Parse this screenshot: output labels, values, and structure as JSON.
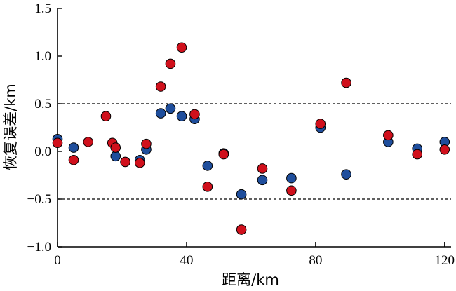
{
  "chart_data": {
    "type": "scatter",
    "xlabel": "距离/km",
    "ylabel": "恢复误差/km",
    "xlim": [
      0,
      122
    ],
    "ylim": [
      -1.0,
      1.5
    ],
    "x_ticks": [
      0,
      40,
      80,
      120
    ],
    "x_tick_labels": [
      "0",
      "40",
      "80",
      "120"
    ],
    "y_ticks": [
      -1.0,
      -0.5,
      0.0,
      0.5,
      1.0,
      1.5
    ],
    "y_tick_labels": [
      "−1.0",
      "−0.5",
      "0.0",
      "0.5",
      "1.0",
      "1.5"
    ],
    "reference_lines": [
      0.5,
      -0.5
    ],
    "grid": false,
    "legend": "none",
    "series": [
      {
        "color": "#1f4e9c",
        "x": [
          0,
          5,
          18,
          25.5,
          27.5,
          32,
          35,
          38.5,
          42.5,
          46.5,
          51.5,
          57,
          63.5,
          72.5,
          81.5,
          89.5,
          102.5,
          111.5,
          120
        ],
        "y": [
          0.13,
          0.04,
          -0.05,
          -0.09,
          0.02,
          0.4,
          0.45,
          0.37,
          0.34,
          -0.15,
          -0.02,
          -0.45,
          -0.3,
          -0.28,
          0.25,
          -0.24,
          0.1,
          0.03,
          0.1
        ]
      },
      {
        "color": "#d0101c",
        "x": [
          0,
          5,
          9.5,
          15,
          17,
          18,
          21,
          25.5,
          27.5,
          32,
          35,
          38.5,
          42.5,
          46.5,
          51.5,
          57,
          63.5,
          72.5,
          81.5,
          89.5,
          102.5,
          111.5,
          120
        ],
        "y": [
          0.09,
          -0.09,
          0.1,
          0.37,
          0.09,
          0.04,
          -0.11,
          -0.12,
          0.08,
          0.68,
          0.92,
          1.09,
          0.39,
          -0.37,
          -0.03,
          -0.82,
          -0.18,
          -0.41,
          0.29,
          0.72,
          0.17,
          -0.03,
          0.02
        ]
      }
    ]
  }
}
